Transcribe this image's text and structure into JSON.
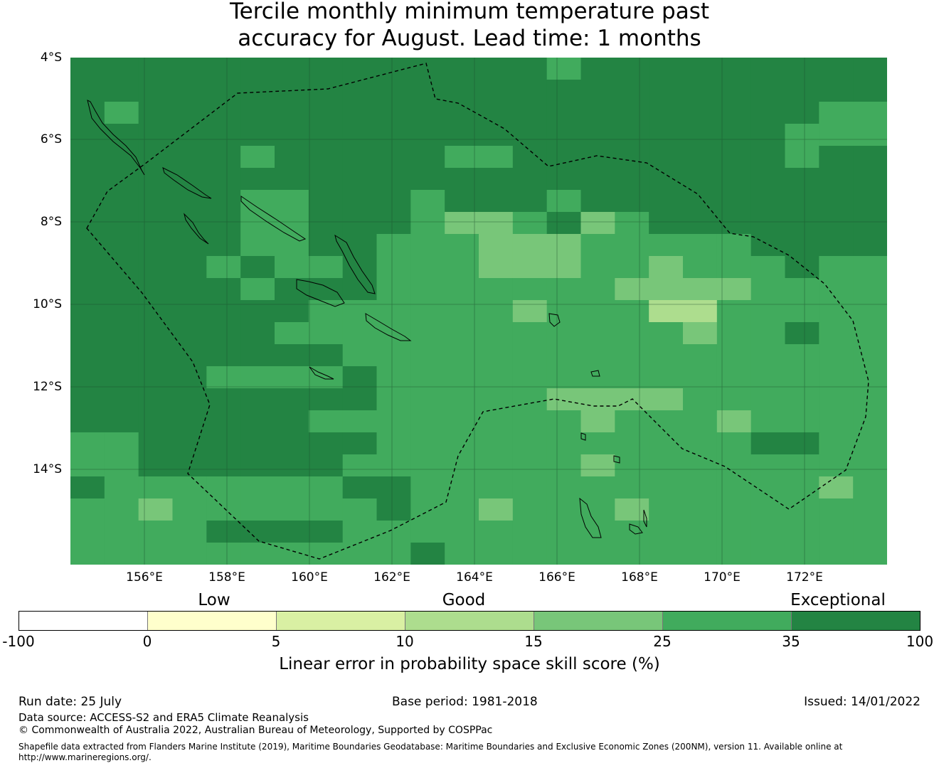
{
  "title_line1": "Tercile monthly minimum temperature past",
  "title_line2": "accuracy for August. Lead time: 1 months",
  "lat_labels": [
    "4°S",
    "6°S",
    "8°S",
    "10°S",
    "12°S",
    "14°S"
  ],
  "lon_labels": [
    "156°E",
    "158°E",
    "160°E",
    "162°E",
    "164°E",
    "166°E",
    "168°E",
    "170°E",
    "172°E"
  ],
  "colorbar": {
    "categories": [
      "Low",
      "Good",
      "Exceptional"
    ],
    "colors": [
      "#ffffff",
      "#ffffcc",
      "#d9f0a3",
      "#addd8e",
      "#78c679",
      "#41ab5d",
      "#238443"
    ],
    "ticks": [
      "-100",
      "0",
      "5",
      "10",
      "15",
      "25",
      "35",
      "100"
    ],
    "label": "Linear error in probability space skill score (%)"
  },
  "footer": {
    "run_date": "Run date: 25 July",
    "base_period": "Base period: 1981-2018",
    "issued": "Issued: 14/01/2022",
    "data_source": "Data source: ACCESS-S2 and ERA5 Climate Reanalysis",
    "copyright": "© Commonwealth of Australia 2022, Australian Bureau of Meteorology, Supported by COSPPac",
    "shapefile_line1": "Shapefile data extracted from Flanders Marine Institute (2019), Maritime Boundaries Geodatabase: Maritime Boundaries and Exclusive Economic Zones (200NM), version 11. Available online at",
    "shapefile_line2": "http://www.marineregions.org/."
  },
  "map": {
    "palette": {
      "D": "#238443",
      "M": "#41ab5d",
      "L": "#78c679",
      "P": "#addd8e"
    },
    "grid_rows": [
      "DDDDDDDDDDDDDDMDDDDDDDDD",
      "DDDDDDDDDDDDDDDDDDDDDDDD",
      "DMDDDDDDDDDDDDDDDDDDDDMM",
      "DDDDDDDDDDDDDDDDDDDDDMMM",
      "DDDDDMDDDDDMMDDDDDDDDMDD",
      "DDDDDDDDDDDDDDDDDDDDDDDD",
      "DDDDDMMDDDMDDDMDDDDDDDDD",
      "DDDDDMMDDDMLLMDLMDDDDDDD",
      "DDDDDMMDDMMMLLLMMMMMDDDD",
      "DDDDMDMMDMMMLLLMMLMMMDMM",
      "DDDDDMDDDMMMMMMMLLLLMMMM",
      "DDDDDDDMMMMMMLMMMPPMMMMM",
      "DDDDDDMMMMMMMMMMMMLMMDMM",
      "DDDDDDDDMMMMMMMMMMMMMMMM",
      "DDDDMMMMDMMMMMMMMMMMMMMM",
      "DDDDDDDDDMMMMMLLLLMMMMMM",
      "DDDDDDDMMMMMMMMLMMMLMMMM",
      "MMDDDDDDDMMMMMMMMMMMDDMM",
      "MMDDDDDDMMMMMMMLMMMMMMMM",
      "DMMMMMMMDDMMMMMMMMMMMMLM",
      "MMLMMMMMMDMMLMMMLMMMMMMM",
      "MMMMDDDDMMMMMMMMMMMMMMMM",
      "MMMMMMMMMMDMMMMMMMMMMMMM"
    ],
    "grid_last_cell_color": "#238443"
  }
}
